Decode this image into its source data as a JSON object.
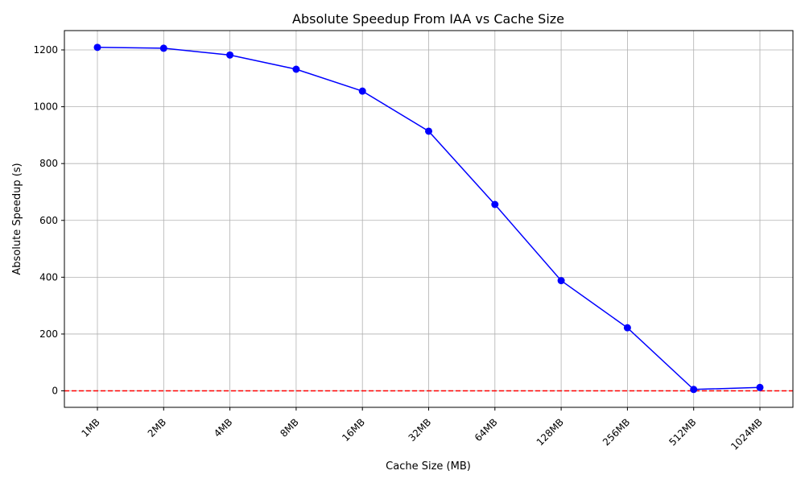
{
  "chart_data": {
    "type": "line",
    "title": "Absolute Speedup From IAA vs Cache Size",
    "xlabel": "Cache Size (MB)",
    "ylabel": "Absolute Speedup (s)",
    "categories": [
      "1MB",
      "2MB",
      "4MB",
      "8MB",
      "16MB",
      "32MB",
      "64MB",
      "128MB",
      "256MB",
      "512MB",
      "1024MB"
    ],
    "series": [
      {
        "values": [
          1209,
          1206,
          1182,
          1132,
          1055,
          914,
          656,
          388,
          222,
          5,
          12
        ],
        "color": "#0000ff",
        "marker": "circle"
      }
    ],
    "reference_line": {
      "y": 0,
      "color": "#ff0000",
      "style": "dashed"
    },
    "ylim": [
      -58,
      1268
    ],
    "yticks": [
      0,
      200,
      400,
      600,
      800,
      1000,
      1200
    ],
    "grid": true,
    "x_tick_rotation": 45
  }
}
